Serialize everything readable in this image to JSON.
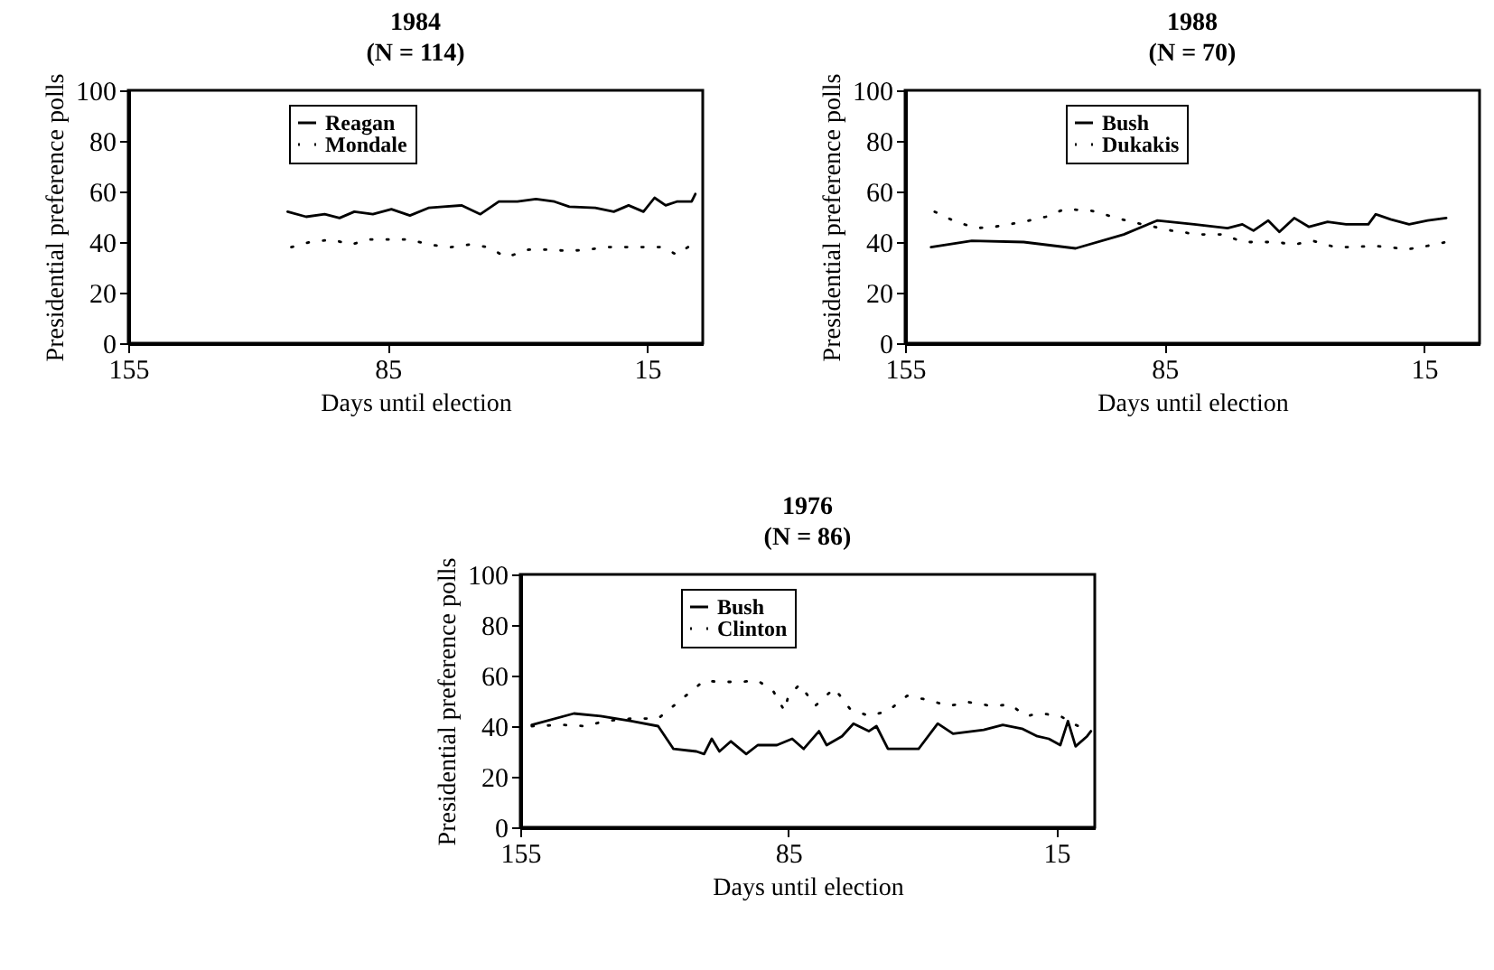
{
  "chart_data": [
    {
      "type": "line",
      "title": "1984",
      "subtitle": "(N = 114)",
      "xlabel": "Days until election",
      "ylabel": "Presidential preference polls",
      "xlim": [
        155,
        0
      ],
      "xticks": [
        155,
        85,
        15
      ],
      "ylim": [
        0,
        100
      ],
      "yticks": [
        0,
        20,
        40,
        60,
        80,
        100
      ],
      "legend": "top",
      "grid": false,
      "marker": "none",
      "series": [
        {
          "name": "Reagan",
          "color": "#000000",
          "line_style": "solid",
          "x": [
            112,
            107,
            102,
            98,
            94,
            89,
            84,
            79,
            74,
            70,
            65,
            60,
            55,
            50,
            45,
            40,
            36,
            29,
            24,
            20,
            16,
            13,
            10,
            7,
            3,
            2
          ],
          "values": [
            52,
            50,
            51,
            49.5,
            52,
            51,
            53,
            50.5,
            53.5,
            54,
            54.5,
            51,
            56,
            56,
            57,
            56,
            54,
            53.5,
            52,
            54.5,
            52,
            57.5,
            54.5,
            56,
            56,
            59
          ]
        },
        {
          "name": "Mondale",
          "color": "#000000",
          "line_style": "dotted",
          "x": [
            111,
            106,
            100,
            95,
            90,
            84,
            79,
            74,
            68,
            63,
            58,
            53,
            47,
            42,
            36,
            31,
            26,
            20,
            16,
            11,
            7,
            3
          ],
          "values": [
            38,
            40,
            41,
            39,
            41,
            41,
            41,
            39,
            38,
            39,
            38,
            34,
            37,
            37,
            36.5,
            37,
            38,
            38,
            38,
            38,
            35,
            39
          ]
        }
      ]
    },
    {
      "type": "line",
      "title": "1988",
      "subtitle": "(N = 70)",
      "xlabel": "Days until election",
      "ylabel": "Presidential preference polls",
      "xlim": [
        155,
        0
      ],
      "xticks": [
        155,
        85,
        15
      ],
      "ylim": [
        0,
        100
      ],
      "yticks": [
        0,
        20,
        40,
        60,
        80,
        100
      ],
      "legend": "top",
      "grid": false,
      "marker": "none",
      "series": [
        {
          "name": "Bush",
          "color": "#000000",
          "line_style": "solid",
          "x": [
            148,
            137,
            123,
            109,
            96,
            87,
            77,
            68,
            64,
            61,
            57,
            54,
            50,
            46,
            41,
            36,
            30,
            28,
            24,
            19,
            14,
            9
          ],
          "values": [
            38,
            40.5,
            40,
            37.5,
            43,
            48.5,
            47,
            45.5,
            47,
            44.5,
            48.5,
            44,
            49.5,
            46,
            48,
            47,
            47,
            51,
            49,
            47,
            48.5,
            49.5
          ]
        },
        {
          "name": "Dukakis",
          "color": "#000000",
          "line_style": "dotted",
          "x": [
            147,
            142,
            136,
            131,
            123,
            117,
            112,
            105,
            99,
            94,
            83,
            76,
            69,
            64,
            55,
            50,
            45,
            39,
            34,
            29,
            24,
            20,
            14,
            9
          ],
          "values": [
            52,
            48.5,
            45.5,
            46,
            48,
            50,
            53,
            52.5,
            50,
            48,
            44.5,
            43,
            43,
            40,
            40,
            39,
            40.5,
            38,
            38,
            38.5,
            38,
            37,
            38.5,
            40
          ]
        }
      ]
    },
    {
      "type": "line",
      "title": "1976",
      "subtitle": "(N = 86)",
      "xlabel": "Days until election",
      "ylabel": "Presidential preference polls",
      "xlim": [
        155,
        5
      ],
      "xticks": [
        155,
        85,
        15
      ],
      "ylim": [
        0,
        100
      ],
      "yticks": [
        0,
        20,
        40,
        60,
        80,
        100
      ],
      "legend": "top",
      "grid": false,
      "marker": "none",
      "series": [
        {
          "name": "Bush",
          "color": "#000000",
          "line_style": "solid",
          "x": [
            152,
            141,
            134,
            126,
            119,
            115,
            109,
            107,
            105,
            103,
            100,
            96,
            93,
            88,
            84,
            81,
            77,
            75,
            71,
            68,
            64,
            62,
            59,
            51,
            46,
            42,
            34,
            29,
            24,
            20,
            17,
            14,
            12,
            10,
            7,
            6
          ],
          "values": [
            40.5,
            45,
            44,
            42,
            40,
            31,
            30,
            29,
            35,
            30,
            34,
            29,
            32.5,
            32.5,
            35,
            31,
            38,
            32.5,
            36,
            41,
            38,
            40,
            31,
            31,
            41,
            37,
            38.5,
            40.5,
            39,
            36,
            35,
            32.5,
            42,
            32,
            36,
            38
          ]
        },
        {
          "name": "Clinton",
          "color": "#000000",
          "line_style": "dotted",
          "x": [
            152,
            144,
            138,
            133,
            126,
            119,
            115,
            111,
            107,
            103,
            98,
            93,
            89,
            86,
            85,
            82,
            78,
            73,
            69,
            64,
            59,
            54,
            49,
            43,
            38,
            32,
            27,
            23,
            19,
            14,
            10,
            7
          ],
          "values": [
            40,
            40.5,
            40,
            42,
            43,
            43,
            48,
            53,
            58,
            57.5,
            57.5,
            58,
            54,
            46,
            52,
            56.5,
            48,
            55,
            47,
            44,
            46,
            52,
            50.5,
            48,
            49.5,
            48,
            48.5,
            44,
            45,
            44,
            40.5,
            38.5
          ]
        }
      ]
    }
  ]
}
